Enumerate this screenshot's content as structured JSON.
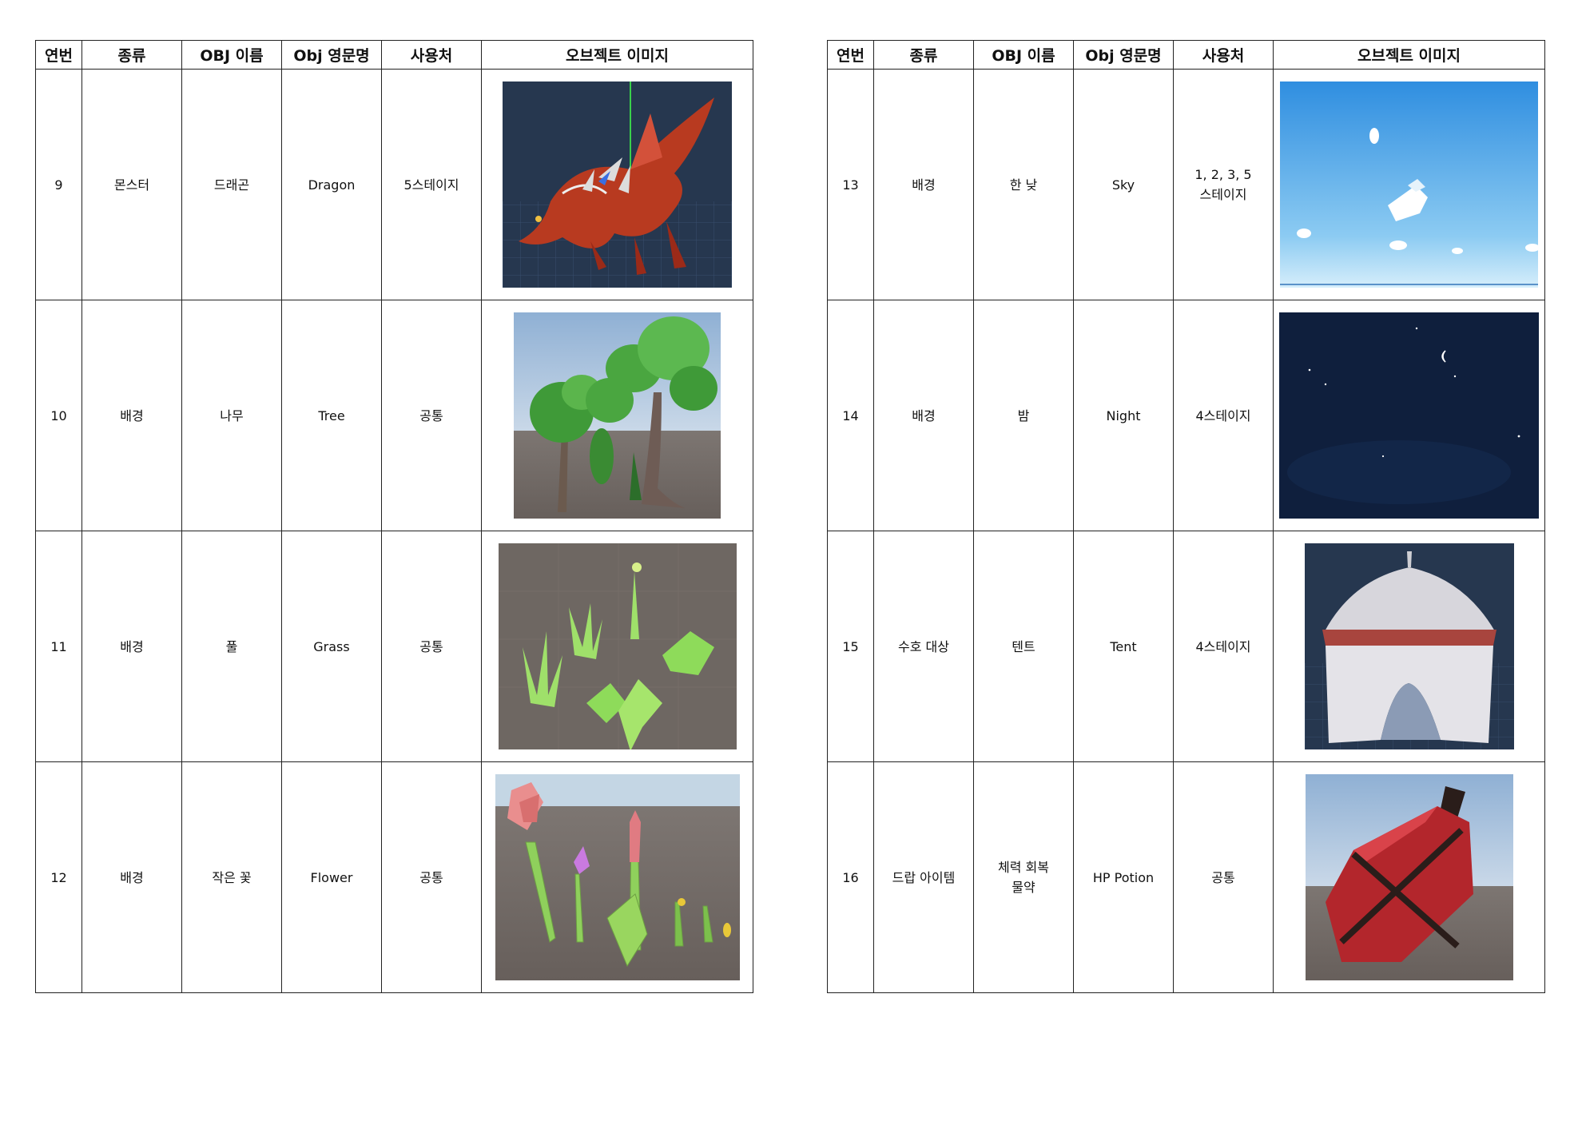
{
  "headers": {
    "no": "연번",
    "kind": "종류",
    "obj_name": "OBJ 이름",
    "eng_name": "Obj 영문명",
    "usage": "사용처",
    "image": "오브젝트 이미지"
  },
  "tables": [
    {
      "rows": [
        {
          "no": "9",
          "kind": "몬스터",
          "obj_name": "드래곤",
          "eng_name": "Dragon",
          "usage": "5스테이지",
          "image": "dragon"
        },
        {
          "no": "10",
          "kind": "배경",
          "obj_name": "나무",
          "eng_name": "Tree",
          "usage": "공통",
          "image": "tree"
        },
        {
          "no": "11",
          "kind": "배경",
          "obj_name": "풀",
          "eng_name": "Grass",
          "usage": "공통",
          "image": "grass"
        },
        {
          "no": "12",
          "kind": "배경",
          "obj_name": "작은 꽃",
          "eng_name": "Flower",
          "usage": "공통",
          "image": "flower"
        }
      ]
    },
    {
      "rows": [
        {
          "no": "13",
          "kind": "배경",
          "obj_name": "한 낮",
          "eng_name": "Sky",
          "usage": "1, 2, 3, 5 스테이지",
          "image": "sky"
        },
        {
          "no": "14",
          "kind": "배경",
          "obj_name": "밤",
          "eng_name": "Night",
          "usage": "4스테이지",
          "image": "night"
        },
        {
          "no": "15",
          "kind": "수호 대상",
          "obj_name": "텐트",
          "eng_name": "Tent",
          "usage": "4스테이지",
          "image": "tent"
        },
        {
          "no": "16",
          "kind": "드랍 아이템",
          "obj_name": "체력 회복 물약",
          "eng_name": "HP Potion",
          "usage": "공통",
          "image": "potion"
        }
      ]
    }
  ]
}
